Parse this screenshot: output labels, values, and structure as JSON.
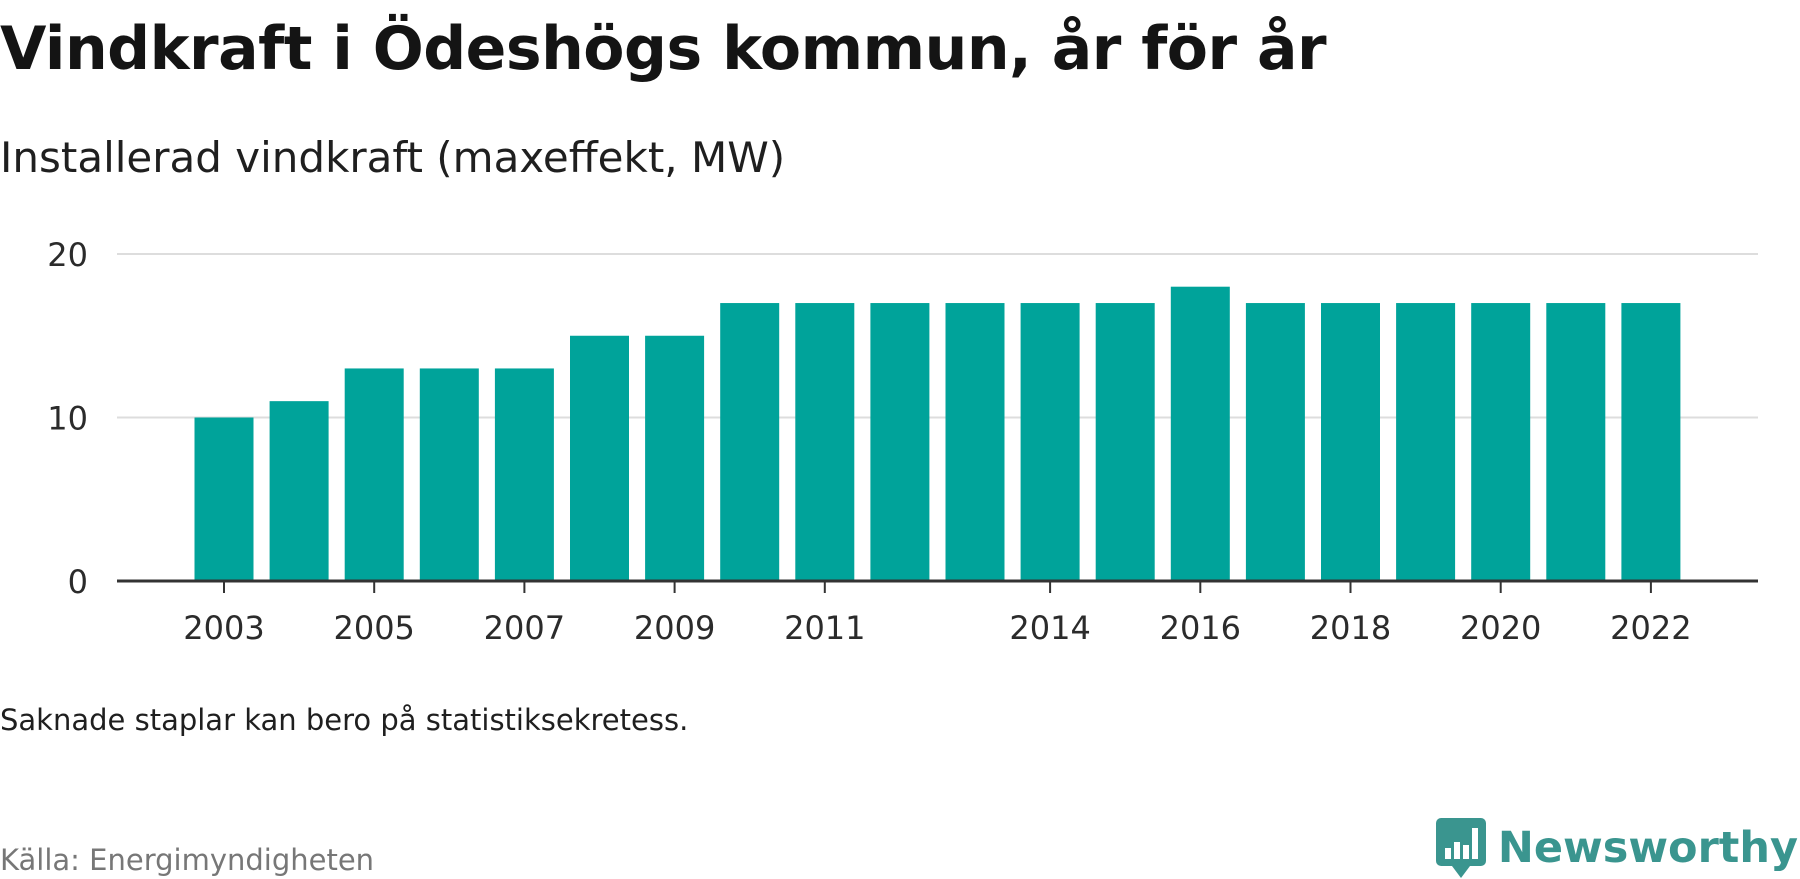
{
  "title": "Vindkraft i Ödeshögs kommun, år för år",
  "subtitle": "Installerad vindkraft (maxeffekt, MW)",
  "note": "Saknade staplar kan bero på statistiksekretess.",
  "source": "Källa: Energimyndigheten",
  "brand": {
    "name": "Newsworthy",
    "icon": "newsworthy-logo-icon"
  },
  "colors": {
    "bar": "#00a39a",
    "grid": "#dddddd",
    "axis": "#333333",
    "brand": "#3a958f"
  },
  "chart_data": {
    "type": "bar",
    "title": "Vindkraft i Ödeshögs kommun, år för år",
    "subtitle": "Installerad vindkraft (maxeffekt, MW)",
    "xlabel": "",
    "ylabel": "",
    "categories": [
      "2003",
      "2004",
      "2005",
      "2006",
      "2007",
      "2008",
      "2009",
      "2010",
      "2011",
      "2012",
      "2013",
      "2014",
      "2015",
      "2016",
      "2017",
      "2018",
      "2019",
      "2020",
      "2021",
      "2022"
    ],
    "values": [
      10,
      11,
      13,
      13,
      13,
      15,
      15,
      17,
      17,
      17,
      17,
      17,
      17,
      18,
      17,
      17,
      17,
      17,
      17,
      17
    ],
    "x_tick_labels": [
      "2003",
      "2005",
      "2007",
      "2009",
      "2011",
      "2014",
      "2016",
      "2018",
      "2020",
      "2022"
    ],
    "y_ticks": [
      0,
      10,
      20
    ],
    "ylim": [
      0,
      20
    ],
    "grid": true,
    "legend": "none"
  }
}
